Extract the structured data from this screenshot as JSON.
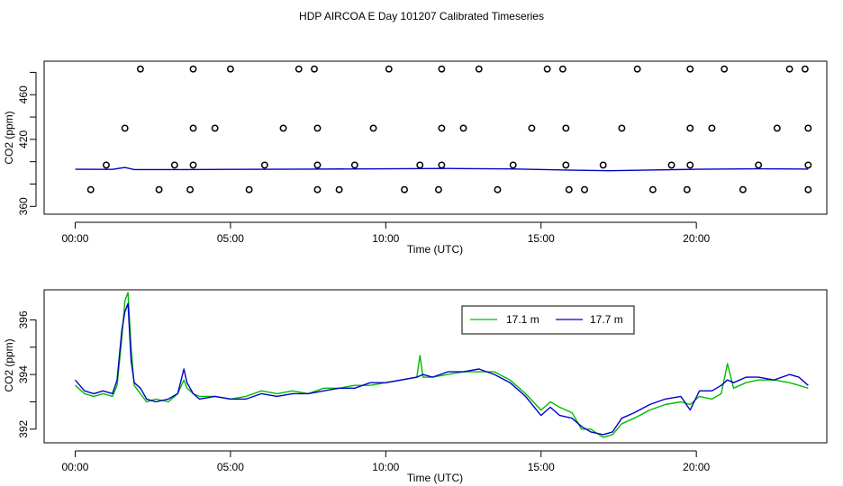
{
  "title": "HDP AIRCOA E  Day 101207  Calibrated Timeseries",
  "chart_data": [
    {
      "type": "scatter",
      "xlabel": "Time (UTC)",
      "ylabel": "CO2 (ppm)",
      "xlim": [
        -1.0,
        24.2
      ],
      "ylim": [
        353,
        490
      ],
      "x_ticks": [
        0,
        5,
        10,
        15,
        20
      ],
      "x_tick_labels": [
        "00:00",
        "05:00",
        "10:00",
        "15:00",
        "20:00"
      ],
      "y_ticks": [
        360,
        380,
        400,
        420,
        440,
        460,
        480
      ],
      "y_tick_labels": [
        "360",
        "",
        "",
        "420",
        "",
        "460",
        ""
      ],
      "grid": false,
      "line_color": "#0000cc",
      "points": [
        [
          2.1,
          483
        ],
        [
          3.8,
          483
        ],
        [
          5.0,
          483
        ],
        [
          7.2,
          483
        ],
        [
          7.7,
          483
        ],
        [
          10.1,
          483
        ],
        [
          11.8,
          483
        ],
        [
          13.0,
          483
        ],
        [
          15.2,
          483
        ],
        [
          15.7,
          483
        ],
        [
          18.1,
          483
        ],
        [
          19.8,
          483
        ],
        [
          20.9,
          483
        ],
        [
          23.0,
          483
        ],
        [
          23.5,
          483
        ],
        [
          1.6,
          430
        ],
        [
          3.8,
          430
        ],
        [
          4.5,
          430
        ],
        [
          6.7,
          430
        ],
        [
          7.8,
          430
        ],
        [
          9.6,
          430
        ],
        [
          11.8,
          430
        ],
        [
          12.5,
          430
        ],
        [
          14.7,
          430
        ],
        [
          15.8,
          430
        ],
        [
          17.6,
          430
        ],
        [
          19.8,
          430
        ],
        [
          20.5,
          430
        ],
        [
          22.6,
          430
        ],
        [
          23.6,
          430
        ],
        [
          1.0,
          397
        ],
        [
          3.2,
          397
        ],
        [
          3.8,
          397
        ],
        [
          6.1,
          397
        ],
        [
          7.8,
          397
        ],
        [
          9.0,
          397
        ],
        [
          11.1,
          397
        ],
        [
          11.8,
          397
        ],
        [
          14.1,
          397
        ],
        [
          15.8,
          397
        ],
        [
          17.0,
          397
        ],
        [
          19.2,
          397
        ],
        [
          19.8,
          397
        ],
        [
          22.0,
          397
        ],
        [
          23.6,
          397
        ],
        [
          0.5,
          375
        ],
        [
          2.7,
          375
        ],
        [
          3.7,
          375
        ],
        [
          5.6,
          375
        ],
        [
          7.8,
          375
        ],
        [
          8.5,
          375
        ],
        [
          10.6,
          375
        ],
        [
          11.7,
          375
        ],
        [
          13.6,
          375
        ],
        [
          15.9,
          375
        ],
        [
          16.4,
          375
        ],
        [
          18.6,
          375
        ],
        [
          19.7,
          375
        ],
        [
          21.5,
          375
        ],
        [
          23.6,
          375
        ]
      ],
      "series": [
        {
          "values": [
            [
              0,
              393.2
            ],
            [
              1.2,
              393.1
            ],
            [
              1.6,
              394.8
            ],
            [
              1.9,
              393.0
            ],
            [
              3.5,
              393.0
            ],
            [
              5.0,
              393.1
            ],
            [
              7.5,
              393.4
            ],
            [
              10,
              393.6
            ],
            [
              12,
              393.9
            ],
            [
              14,
              393.5
            ],
            [
              16,
              392.4
            ],
            [
              17.2,
              391.9
            ],
            [
              18.5,
              392.6
            ],
            [
              20,
              393.2
            ],
            [
              22,
              393.6
            ],
            [
              23.6,
              393.4
            ]
          ]
        }
      ]
    },
    {
      "type": "line",
      "xlabel": "Time (UTC)",
      "ylabel": "CO2 (ppm)",
      "xlim": [
        -1.0,
        24.2
      ],
      "ylim": [
        391.5,
        397.1
      ],
      "x_ticks": [
        0,
        5,
        10,
        15,
        20
      ],
      "x_tick_labels": [
        "00:00",
        "05:00",
        "10:00",
        "15:00",
        "20:00"
      ],
      "y_ticks": [
        392,
        393,
        394,
        395,
        396
      ],
      "y_tick_labels": [
        "392",
        "",
        "394",
        "",
        "396"
      ],
      "grid": false,
      "legend": {
        "position": "top-center"
      },
      "series": [
        {
          "name": "17.1 m",
          "color": "#00bb00",
          "values": [
            [
              0,
              393.6
            ],
            [
              0.3,
              393.3
            ],
            [
              0.6,
              393.2
            ],
            [
              0.9,
              393.3
            ],
            [
              1.2,
              393.2
            ],
            [
              1.35,
              393.6
            ],
            [
              1.5,
              395.3
            ],
            [
              1.6,
              396.7
            ],
            [
              1.7,
              397.0
            ],
            [
              1.8,
              395.0
            ],
            [
              1.9,
              393.6
            ],
            [
              2.1,
              393.3
            ],
            [
              2.3,
              393.0
            ],
            [
              2.6,
              393.1
            ],
            [
              3.0,
              393.0
            ],
            [
              3.3,
              393.3
            ],
            [
              3.5,
              393.8
            ],
            [
              3.6,
              393.5
            ],
            [
              3.8,
              393.3
            ],
            [
              4.0,
              393.2
            ],
            [
              4.5,
              393.2
            ],
            [
              5.0,
              393.1
            ],
            [
              5.5,
              393.2
            ],
            [
              6.0,
              393.4
            ],
            [
              6.5,
              393.3
            ],
            [
              7.0,
              393.4
            ],
            [
              7.5,
              393.3
            ],
            [
              8.0,
              393.5
            ],
            [
              8.5,
              393.5
            ],
            [
              9.0,
              393.6
            ],
            [
              9.5,
              393.6
            ],
            [
              10.0,
              393.7
            ],
            [
              10.5,
              393.8
            ],
            [
              11.0,
              393.9
            ],
            [
              11.1,
              394.7
            ],
            [
              11.2,
              393.9
            ],
            [
              11.5,
              393.9
            ],
            [
              12.0,
              394.0
            ],
            [
              12.5,
              394.1
            ],
            [
              13.0,
              394.1
            ],
            [
              13.5,
              394.1
            ],
            [
              14.0,
              393.8
            ],
            [
              14.5,
              393.3
            ],
            [
              15.0,
              392.7
            ],
            [
              15.3,
              393.0
            ],
            [
              15.6,
              392.8
            ],
            [
              16.0,
              392.6
            ],
            [
              16.3,
              392.0
            ],
            [
              16.6,
              392.0
            ],
            [
              17.0,
              391.7
            ],
            [
              17.3,
              391.8
            ],
            [
              17.6,
              392.2
            ],
            [
              18.0,
              392.4
            ],
            [
              18.5,
              392.7
            ],
            [
              19.0,
              392.9
            ],
            [
              19.5,
              393.0
            ],
            [
              19.8,
              392.9
            ],
            [
              20.1,
              393.2
            ],
            [
              20.5,
              393.1
            ],
            [
              20.8,
              393.3
            ],
            [
              21.0,
              394.4
            ],
            [
              21.2,
              393.5
            ],
            [
              21.6,
              393.7
            ],
            [
              22.0,
              393.8
            ],
            [
              22.5,
              393.8
            ],
            [
              23.0,
              393.7
            ],
            [
              23.3,
              393.6
            ],
            [
              23.6,
              393.5
            ]
          ]
        },
        {
          "name": "17.7 m",
          "color": "#0000cc",
          "values": [
            [
              0,
              393.8
            ],
            [
              0.3,
              393.4
            ],
            [
              0.6,
              393.3
            ],
            [
              0.9,
              393.4
            ],
            [
              1.2,
              393.3
            ],
            [
              1.35,
              393.8
            ],
            [
              1.5,
              395.6
            ],
            [
              1.6,
              396.3
            ],
            [
              1.7,
              396.6
            ],
            [
              1.8,
              394.5
            ],
            [
              1.9,
              393.7
            ],
            [
              2.1,
              393.5
            ],
            [
              2.3,
              393.1
            ],
            [
              2.6,
              393.0
            ],
            [
              3.0,
              393.1
            ],
            [
              3.3,
              393.3
            ],
            [
              3.5,
              394.2
            ],
            [
              3.6,
              393.7
            ],
            [
              3.8,
              393.3
            ],
            [
              4.0,
              393.1
            ],
            [
              4.5,
              393.2
            ],
            [
              5.0,
              393.1
            ],
            [
              5.5,
              393.1
            ],
            [
              6.0,
              393.3
            ],
            [
              6.5,
              393.2
            ],
            [
              7.0,
              393.3
            ],
            [
              7.5,
              393.3
            ],
            [
              8.0,
              393.4
            ],
            [
              8.5,
              393.5
            ],
            [
              9.0,
              393.5
            ],
            [
              9.5,
              393.7
            ],
            [
              10.0,
              393.7
            ],
            [
              10.5,
              393.8
            ],
            [
              11.0,
              393.9
            ],
            [
              11.2,
              394.0
            ],
            [
              11.5,
              393.9
            ],
            [
              12.0,
              394.1
            ],
            [
              12.5,
              394.1
            ],
            [
              13.0,
              394.2
            ],
            [
              13.5,
              394.0
            ],
            [
              14.0,
              393.7
            ],
            [
              14.5,
              393.2
            ],
            [
              15.0,
              392.5
            ],
            [
              15.3,
              392.8
            ],
            [
              15.6,
              392.5
            ],
            [
              16.0,
              392.4
            ],
            [
              16.3,
              392.1
            ],
            [
              16.6,
              391.9
            ],
            [
              17.0,
              391.8
            ],
            [
              17.3,
              391.9
            ],
            [
              17.6,
              392.4
            ],
            [
              18.0,
              392.6
            ],
            [
              18.5,
              392.9
            ],
            [
              19.0,
              393.1
            ],
            [
              19.5,
              393.2
            ],
            [
              19.8,
              392.7
            ],
            [
              20.1,
              393.4
            ],
            [
              20.5,
              393.4
            ],
            [
              20.8,
              393.6
            ],
            [
              21.0,
              393.8
            ],
            [
              21.2,
              393.7
            ],
            [
              21.6,
              393.9
            ],
            [
              22.0,
              393.9
            ],
            [
              22.5,
              393.8
            ],
            [
              23.0,
              394.0
            ],
            [
              23.3,
              393.9
            ],
            [
              23.6,
              393.6
            ]
          ]
        }
      ]
    }
  ]
}
